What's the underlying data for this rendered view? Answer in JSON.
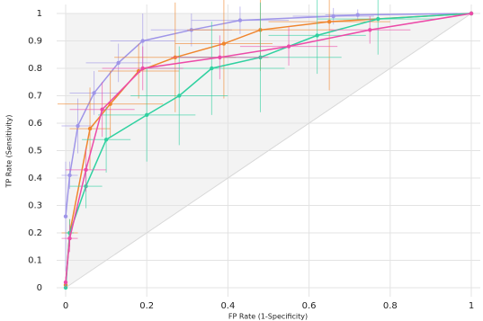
{
  "chart_data": {
    "type": "line",
    "x_label": "FP Rate (1-Specificity)",
    "y_label": "TP Rate (Sensitivity)",
    "xlim": [
      0,
      1
    ],
    "ylim": [
      0,
      1
    ],
    "xticks": [
      0,
      0.2,
      0.4,
      0.6,
      0.8,
      1
    ],
    "yticks": [
      0,
      0.1,
      0.2,
      0.3,
      0.4,
      0.5,
      0.6,
      0.7,
      0.8,
      0.9,
      1
    ],
    "grid": true,
    "series": [
      {
        "color": "#9f95e8",
        "x": [
          0,
          0.01,
          0.03,
          0.07,
          0.13,
          0.19,
          0.31,
          0.43,
          0.66,
          0.72,
          1
        ],
        "values": [
          0.26,
          0.41,
          0.59,
          0.71,
          0.82,
          0.9,
          0.94,
          0.975,
          0.99,
          0.995,
          1
        ],
        "x_errors": [
          0,
          0.02,
          0.04,
          0.06,
          0.08,
          0.08,
          0.1,
          0.12,
          0.1,
          0.08,
          0
        ],
        "y_errors": [
          0.2,
          0.05,
          0.1,
          0.08,
          0.07,
          0.1,
          0.06,
          0.05,
          0.03,
          0.02,
          0
        ]
      },
      {
        "color": "#f0852d",
        "x": [
          0,
          0.01,
          0.06,
          0.11,
          0.18,
          0.27,
          0.39,
          0.48,
          0.65,
          1
        ],
        "values": [
          0.01,
          0.2,
          0.58,
          0.67,
          0.79,
          0.84,
          0.89,
          0.94,
          0.97,
          1
        ],
        "x_errors": [
          0,
          0.02,
          0.05,
          0.13,
          0.1,
          0.15,
          0.12,
          0.18,
          0.15,
          0
        ],
        "y_errors": [
          0.01,
          0.05,
          0.15,
          0.12,
          0.1,
          0.2,
          0.2,
          0.15,
          0.25,
          0
        ]
      },
      {
        "color": "#2fd1a0",
        "x": [
          0,
          0.01,
          0.05,
          0.1,
          0.2,
          0.28,
          0.36,
          0.48,
          0.62,
          0.77,
          1
        ],
        "values": [
          0,
          0.2,
          0.37,
          0.54,
          0.63,
          0.7,
          0.8,
          0.84,
          0.92,
          0.98,
          1
        ],
        "x_errors": [
          0,
          0.01,
          0.04,
          0.06,
          0.12,
          0.12,
          0.18,
          0.2,
          0.12,
          0.15,
          0
        ],
        "y_errors": [
          0,
          0.05,
          0.08,
          0.12,
          0.17,
          0.18,
          0.17,
          0.2,
          0.14,
          0.13,
          0
        ]
      },
      {
        "color": "#ec4aa8",
        "x": [
          0,
          0.01,
          0.05,
          0.09,
          0.19,
          0.38,
          0.55,
          0.75,
          1
        ],
        "values": [
          0.02,
          0.18,
          0.43,
          0.65,
          0.8,
          0.84,
          0.88,
          0.94,
          1
        ],
        "x_errors": [
          0,
          0.02,
          0.05,
          0.08,
          0.1,
          0.12,
          0.12,
          0.1,
          0
        ],
        "y_errors": [
          0.02,
          0.05,
          0.08,
          0.1,
          0.08,
          0.08,
          0.07,
          0.05,
          0
        ]
      }
    ]
  }
}
